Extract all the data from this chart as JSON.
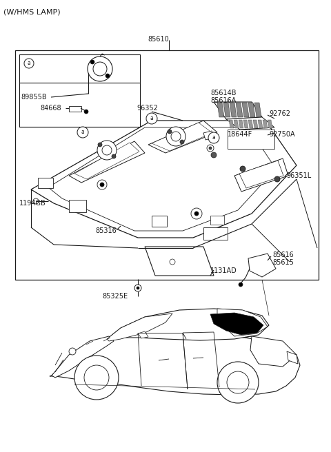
{
  "bg_color": "#ffffff",
  "line_color": "#1a1a1a",
  "text_color": "#1a1a1a",
  "font_size": 7.0,
  "title": "(W/HMS LAMP)",
  "label_85610": "85610",
  "label_96352": "96352",
  "label_85614B": "85614B",
  "label_85616A": "85616A",
  "label_92762": "92762",
  "label_18644F": "18644F",
  "label_92750A": "92750A",
  "label_96351L": "96351L",
  "label_1194GB": "1194GB",
  "label_85316": "85316",
  "label_85616": "85616",
  "label_85615": "85615",
  "label_1131AD": "1131AD",
  "label_85325E": "85325E",
  "label_89855B": "89855B",
  "label_84668": "84668"
}
